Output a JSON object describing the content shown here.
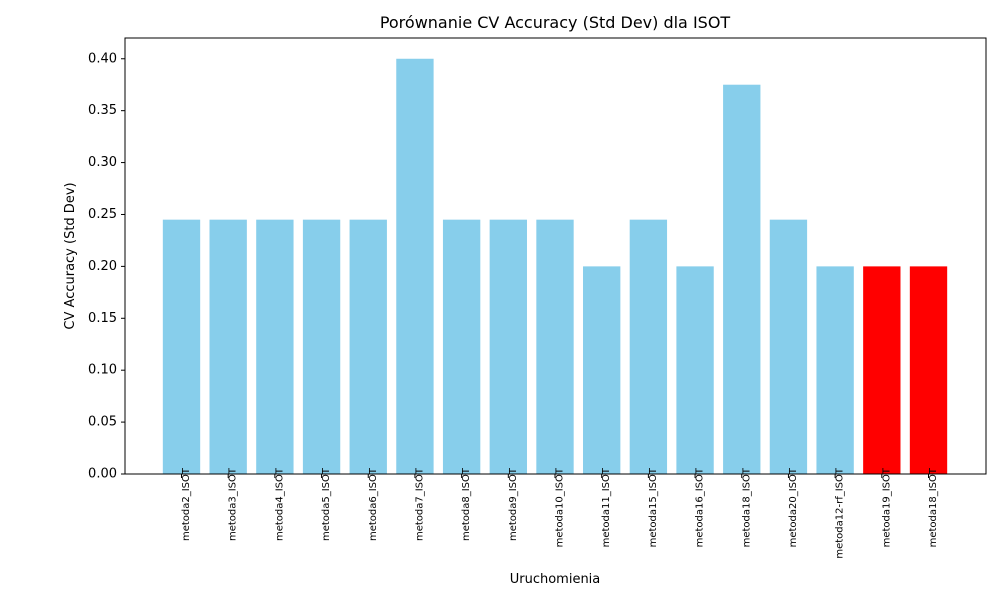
{
  "chart_data": {
    "type": "bar",
    "title": "Porównanie CV Accuracy (Std Dev) dla ISOT",
    "xlabel": "Uruchomienia",
    "ylabel": "CV Accuracy (Std Dev)",
    "ylim": [
      0,
      0.42
    ],
    "yticks": [
      "0.00",
      "0.05",
      "0.10",
      "0.15",
      "0.20",
      "0.25",
      "0.30",
      "0.35",
      "0.40"
    ],
    "categories": [
      "metoda2_ISOT",
      "metoda3_ISOT",
      "metoda4_ISOT",
      "metoda5_ISOT",
      "metoda6_ISOT",
      "metoda7_ISOT",
      "metoda8_ISOT",
      "metoda9_ISOT",
      "metoda10_ISOT",
      "metoda11_ISOT",
      "metoda15_ISOT",
      "metoda16_ISOT",
      "metoda18_ISOT",
      "metoda20_ISOT",
      "metoda12-rf_ISOT",
      "metoda19_ISOT",
      "metoda18_ISOT"
    ],
    "values": [
      0.245,
      0.245,
      0.245,
      0.245,
      0.245,
      0.4,
      0.245,
      0.245,
      0.245,
      0.2,
      0.245,
      0.2,
      0.375,
      0.245,
      0.2,
      0.2,
      0.2
    ],
    "highlighted": [
      false,
      false,
      false,
      false,
      false,
      false,
      false,
      false,
      false,
      false,
      false,
      false,
      false,
      false,
      false,
      true,
      true
    ],
    "colors": {
      "default": "#87CEEB",
      "highlight": "#FF0000"
    },
    "grid": false,
    "legend": "none"
  }
}
